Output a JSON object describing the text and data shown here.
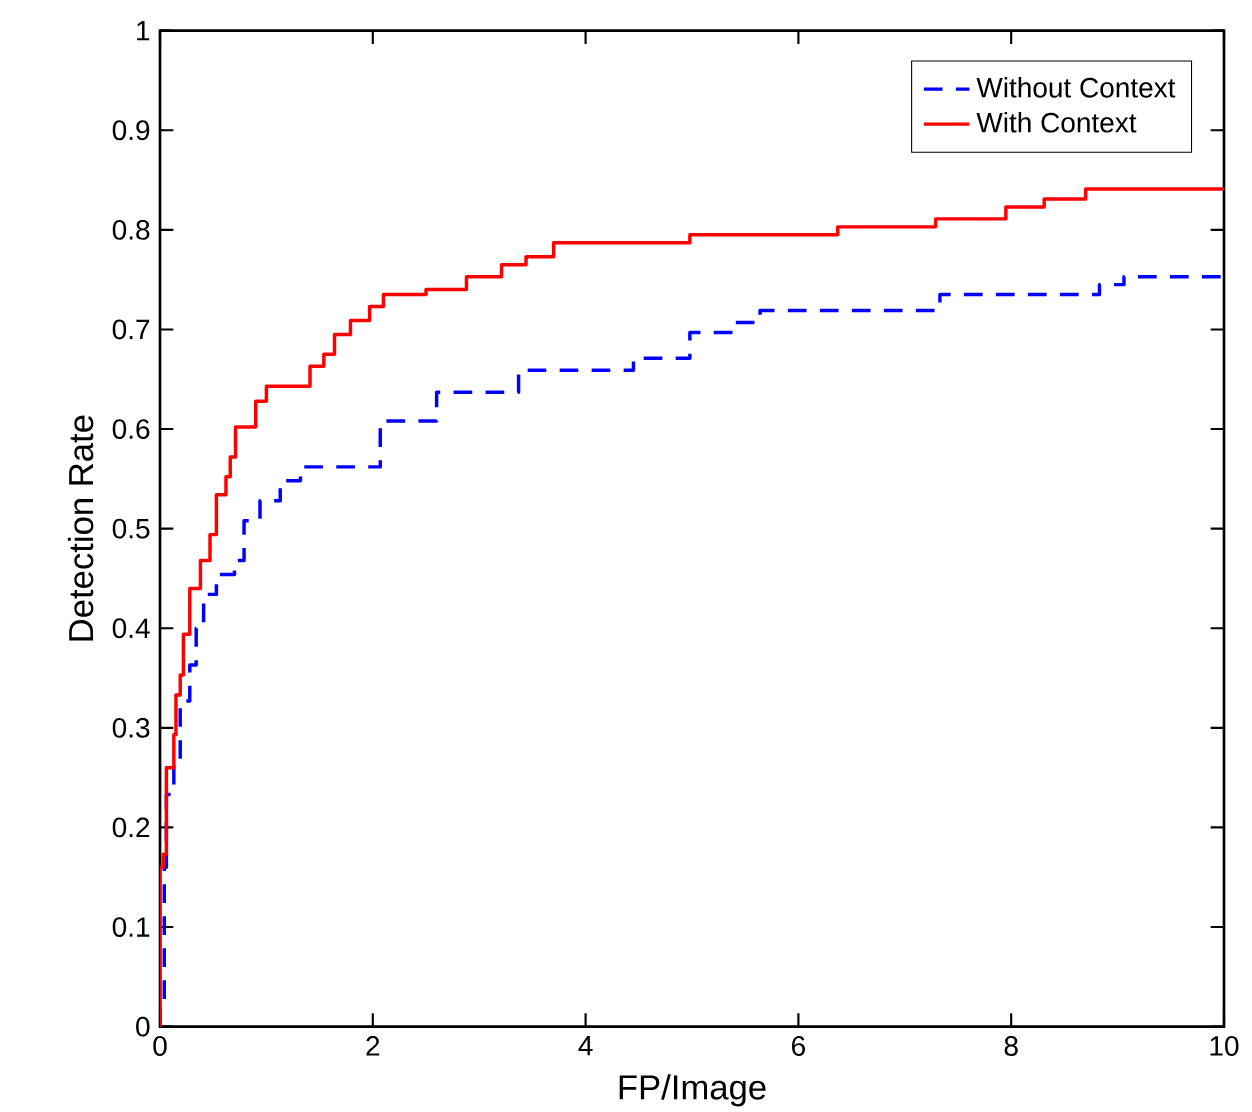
{
  "chart_data": {
    "type": "step",
    "xlabel": "FP/Image",
    "ylabel": "Detection Rate",
    "xlim": [
      0,
      10
    ],
    "ylim": [
      0,
      1
    ],
    "xticks": [
      0,
      2,
      4,
      6,
      8,
      10
    ],
    "yticks": [
      0,
      0.1,
      0.2,
      0.3,
      0.4,
      0.5,
      0.6,
      0.7,
      0.8,
      0.9,
      1
    ],
    "legend": "top right",
    "grid": false,
    "marker": "none",
    "series": [
      {
        "name": "Without Context",
        "color": "#0000ff",
        "line_style": "dashed",
        "x": [
          0,
          0,
          0.04,
          0.06,
          0.13,
          0.19,
          0.28,
          0.34,
          0.41,
          0.53,
          0.7,
          0.79,
          0.94,
          1.13,
          1.32,
          2.07,
          2.6,
          3.37,
          4.45,
          4.98,
          5.39,
          5.64,
          7.33,
          8.83,
          9.06,
          10
        ],
        "values": [
          0,
          0.02,
          0.16,
          0.233,
          0.267,
          0.327,
          0.363,
          0.4,
          0.434,
          0.454,
          0.468,
          0.508,
          0.528,
          0.548,
          0.562,
          0.608,
          0.637,
          0.659,
          0.671,
          0.697,
          0.707,
          0.719,
          0.735,
          0.745,
          0.753,
          0.753
        ]
      },
      {
        "name": "With Context",
        "color": "#ff0000",
        "line_style": "solid",
        "x": [
          0,
          0,
          0.03,
          0.06,
          0.13,
          0.15,
          0.19,
          0.22,
          0.28,
          0.38,
          0.47,
          0.53,
          0.62,
          0.66,
          0.71,
          0.9,
          1.0,
          1.41,
          1.54,
          1.64,
          1.79,
          1.97,
          2.1,
          2.5,
          2.88,
          3.21,
          3.44,
          3.7,
          4.98,
          6.37,
          7.29,
          7.95,
          8.31,
          8.7,
          10
        ],
        "values": [
          0,
          0.16,
          0.173,
          0.26,
          0.293,
          0.333,
          0.353,
          0.394,
          0.44,
          0.468,
          0.494,
          0.534,
          0.552,
          0.572,
          0.602,
          0.628,
          0.643,
          0.663,
          0.675,
          0.695,
          0.709,
          0.723,
          0.735,
          0.74,
          0.753,
          0.765,
          0.773,
          0.787,
          0.795,
          0.803,
          0.811,
          0.823,
          0.831,
          0.841,
          0.841
        ]
      }
    ]
  }
}
